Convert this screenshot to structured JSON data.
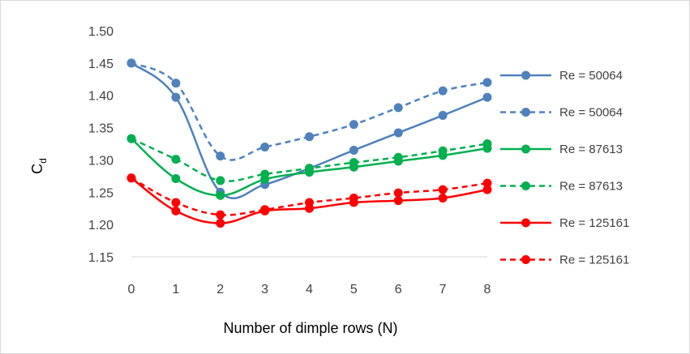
{
  "chart_data": {
    "type": "line",
    "xlabel": "Number of dimple rows (N)",
    "ylabel": "C",
    "ylabel_sub": "d",
    "x": [
      0,
      1,
      2,
      3,
      4,
      5,
      6,
      7,
      8
    ],
    "x_ticks": [
      "0",
      "1",
      "2",
      "3",
      "4",
      "5",
      "6",
      "7",
      "8"
    ],
    "ylim": [
      1.15,
      1.5
    ],
    "y_ticks": [
      "1.15",
      "1.20",
      "1.25",
      "1.30",
      "1.35",
      "1.40",
      "1.45",
      "1.50"
    ],
    "grid": false,
    "legend_position": "right",
    "series": [
      {
        "name": "Re = 50064",
        "color": "#4f81bd",
        "style": "solid",
        "values": [
          1.45,
          1.397,
          1.25,
          1.262,
          1.287,
          1.315,
          1.342,
          1.369,
          1.397
        ]
      },
      {
        "name": "Re = 50064",
        "color": "#4f81bd",
        "style": "dashed",
        "values": [
          1.45,
          1.419,
          1.306,
          1.32,
          1.336,
          1.355,
          1.381,
          1.407,
          1.42
        ]
      },
      {
        "name": "Re = 87613",
        "color": "#00b050",
        "style": "solid",
        "values": [
          1.333,
          1.271,
          1.245,
          1.27,
          1.281,
          1.289,
          1.298,
          1.307,
          1.318
        ]
      },
      {
        "name": "Re = 87613",
        "color": "#00b050",
        "style": "dashed",
        "values": [
          1.333,
          1.301,
          1.268,
          1.278,
          1.287,
          1.296,
          1.304,
          1.314,
          1.325
        ]
      },
      {
        "name": "Re = 125161",
        "color": "#ff0000",
        "style": "solid",
        "values": [
          1.272,
          1.221,
          1.202,
          1.221,
          1.225,
          1.234,
          1.237,
          1.241,
          1.254
        ]
      },
      {
        "name": "Re = 125161",
        "color": "#ff0000",
        "style": "dashed",
        "values": [
          1.272,
          1.234,
          1.215,
          1.223,
          1.234,
          1.241,
          1.249,
          1.254,
          1.264
        ]
      }
    ]
  }
}
